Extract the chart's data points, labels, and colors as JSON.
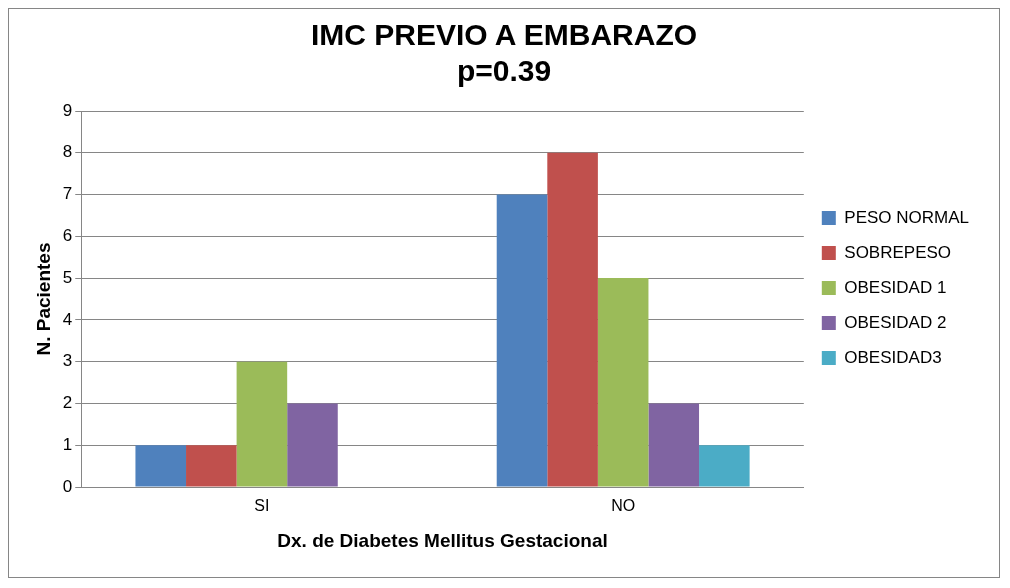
{
  "chart_data": {
    "type": "bar",
    "title": "IMC PREVIO A EMBARAZO",
    "subtitle": "p=0.39",
    "xlabel": "Dx. de Diabetes Mellitus Gestacional",
    "ylabel": "N. Pacientes",
    "categories": [
      "SI",
      "NO"
    ],
    "series": [
      {
        "name": "PESO NORMAL",
        "color": "#4f81bd",
        "values": [
          1,
          7
        ]
      },
      {
        "name": "SOBREPESO",
        "color": "#c0504d",
        "values": [
          1,
          8
        ]
      },
      {
        "name": "OBESIDAD 1",
        "color": "#9bbb59",
        "values": [
          3,
          5
        ]
      },
      {
        "name": "OBESIDAD 2",
        "color": "#8064a2",
        "values": [
          2,
          2
        ]
      },
      {
        "name": "OBESIDAD3",
        "color": "#4bacc6",
        "values": [
          0,
          1
        ]
      }
    ],
    "ylim": [
      0,
      9
    ],
    "yticks": [
      0,
      1,
      2,
      3,
      4,
      5,
      6,
      7,
      8,
      9
    ],
    "grid": "y",
    "legend": "right"
  }
}
